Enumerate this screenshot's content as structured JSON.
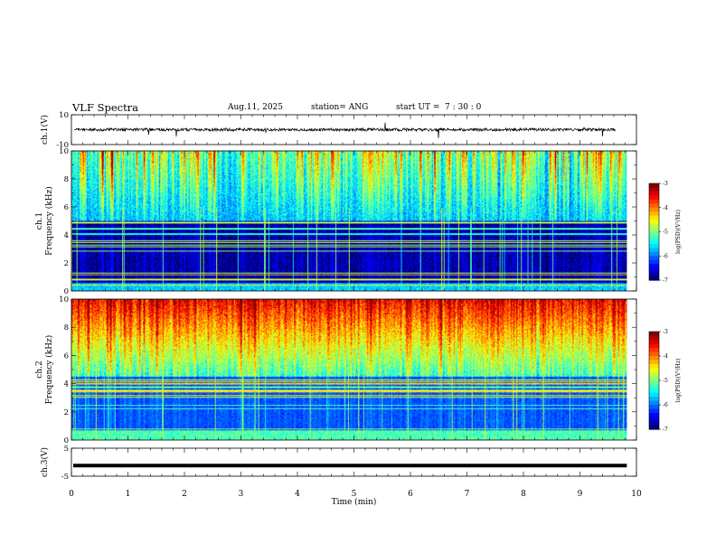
{
  "header": {
    "title": "VLF Spectra",
    "date": "Aug.11, 2025",
    "station": "station= ANG",
    "start_label": "start  UT =",
    "start_time": "7 : 30 : 0"
  },
  "chart_data": [
    {
      "id": "ch1_waveform",
      "type": "line",
      "ylabel": "ch.1(V)",
      "ylim": [
        -10,
        10
      ],
      "y_tick_labels": [
        "10",
        "-10"
      ],
      "xlim": [
        0,
        10
      ],
      "baseline": 0,
      "noise_amplitude": 2
    },
    {
      "id": "ch1_spectrogram",
      "type": "heatmap",
      "ylabel_channel": "ch.1",
      "ylabel": "Frequency (kHz)",
      "ylim": [
        0,
        10
      ],
      "y_tick_labels": [
        "0",
        "2",
        "4",
        "6",
        "8",
        "10"
      ],
      "xlim": [
        0,
        10
      ],
      "data_xmax": 9.83,
      "colorbar": {
        "label": "log(PSD)(V²/Hz)",
        "range": [
          -7,
          -3
        ],
        "tick_labels": [
          "-3",
          "-4",
          "-5",
          "-6",
          "-7"
        ]
      }
    },
    {
      "id": "ch2_spectrogram",
      "type": "heatmap",
      "ylabel_channel": "ch.2",
      "ylabel": "Frequency (kHz)",
      "ylim": [
        0,
        10
      ],
      "y_tick_labels": [
        "0",
        "2",
        "4",
        "6",
        "8",
        "10"
      ],
      "xlim": [
        0,
        10
      ],
      "data_xmax": 9.83,
      "colorbar": {
        "label": "log(PSD)(V²/Hz)",
        "range": [
          -7,
          -3
        ],
        "tick_labels": [
          "-3",
          "-4",
          "-5",
          "-6",
          "-7"
        ]
      }
    },
    {
      "id": "ch3_waveform",
      "type": "line",
      "ylabel": "ch.3(V)",
      "ylim": [
        -5,
        5
      ],
      "y_tick_labels": [
        "5",
        "-5"
      ],
      "xlim": [
        0,
        10
      ],
      "baseline": -1.2
    }
  ],
  "x_axis": {
    "label": "Time (min)",
    "tick_labels": [
      "0",
      "1",
      "2",
      "3",
      "4",
      "5",
      "6",
      "7",
      "8",
      "9",
      "10"
    ]
  }
}
